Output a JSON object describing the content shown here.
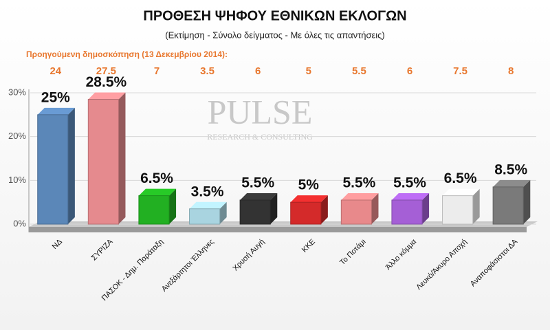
{
  "chart_data": {
    "type": "bar",
    "title": "ΠΡΟΘΕΣΗ ΨΗΦΟΥ ΕΘΝΙΚΩΝ ΕΚΛΟΓΩΝ",
    "subtitle": "(Εκτίμηση - Σύνολο δείγματος - Με όλες τις απαντήσεις)",
    "watermark": {
      "name": "PULSE",
      "tagline": "RESEARCH & CONSULTING"
    },
    "previous_poll": {
      "label": "Προηγούμενη δημοσκόπηση  (13 Δεκεμβρίου 2014):",
      "values": [
        24,
        27.5,
        7,
        3.5,
        6,
        5,
        5.5,
        6,
        7.5,
        8
      ]
    },
    "categories": [
      "ΝΔ",
      "ΣΥΡΙΖΑ",
      "ΠΑΣΟΚ - Δημ. Παράταξη",
      "Ανεξάρτητοι Έλληνες",
      "Χρυσή Αυγή",
      "ΚΚΕ",
      "Το Ποτάμι",
      "Άλλο κόμμα",
      "Λευκό/Άκυρο Αποχή",
      "Αναποφάσιστοι ΔΑ"
    ],
    "values": [
      25,
      28.5,
      6.5,
      3.5,
      5.5,
      5,
      5.5,
      5.5,
      6.5,
      8.5
    ],
    "value_labels": [
      "25%",
      "28.5%",
      "6.5%",
      "3.5%",
      "5.5%",
      "5%",
      "5.5%",
      "5.5%",
      "6.5%",
      "8.5%"
    ],
    "colors": [
      "#5b87b8",
      "#e58a8e",
      "#22b022",
      "#a9d4e0",
      "#333333",
      "#d42a2a",
      "#e8898b",
      "#a55fd6",
      "#ececec",
      "#7a7a7a"
    ],
    "ylim": [
      0,
      30
    ],
    "yticks": [
      {
        "value": 0,
        "label": "0%"
      },
      {
        "value": 10,
        "label": "10%"
      },
      {
        "value": 20,
        "label": "20%"
      },
      {
        "value": 30,
        "label": "30%"
      }
    ],
    "grid": true
  }
}
